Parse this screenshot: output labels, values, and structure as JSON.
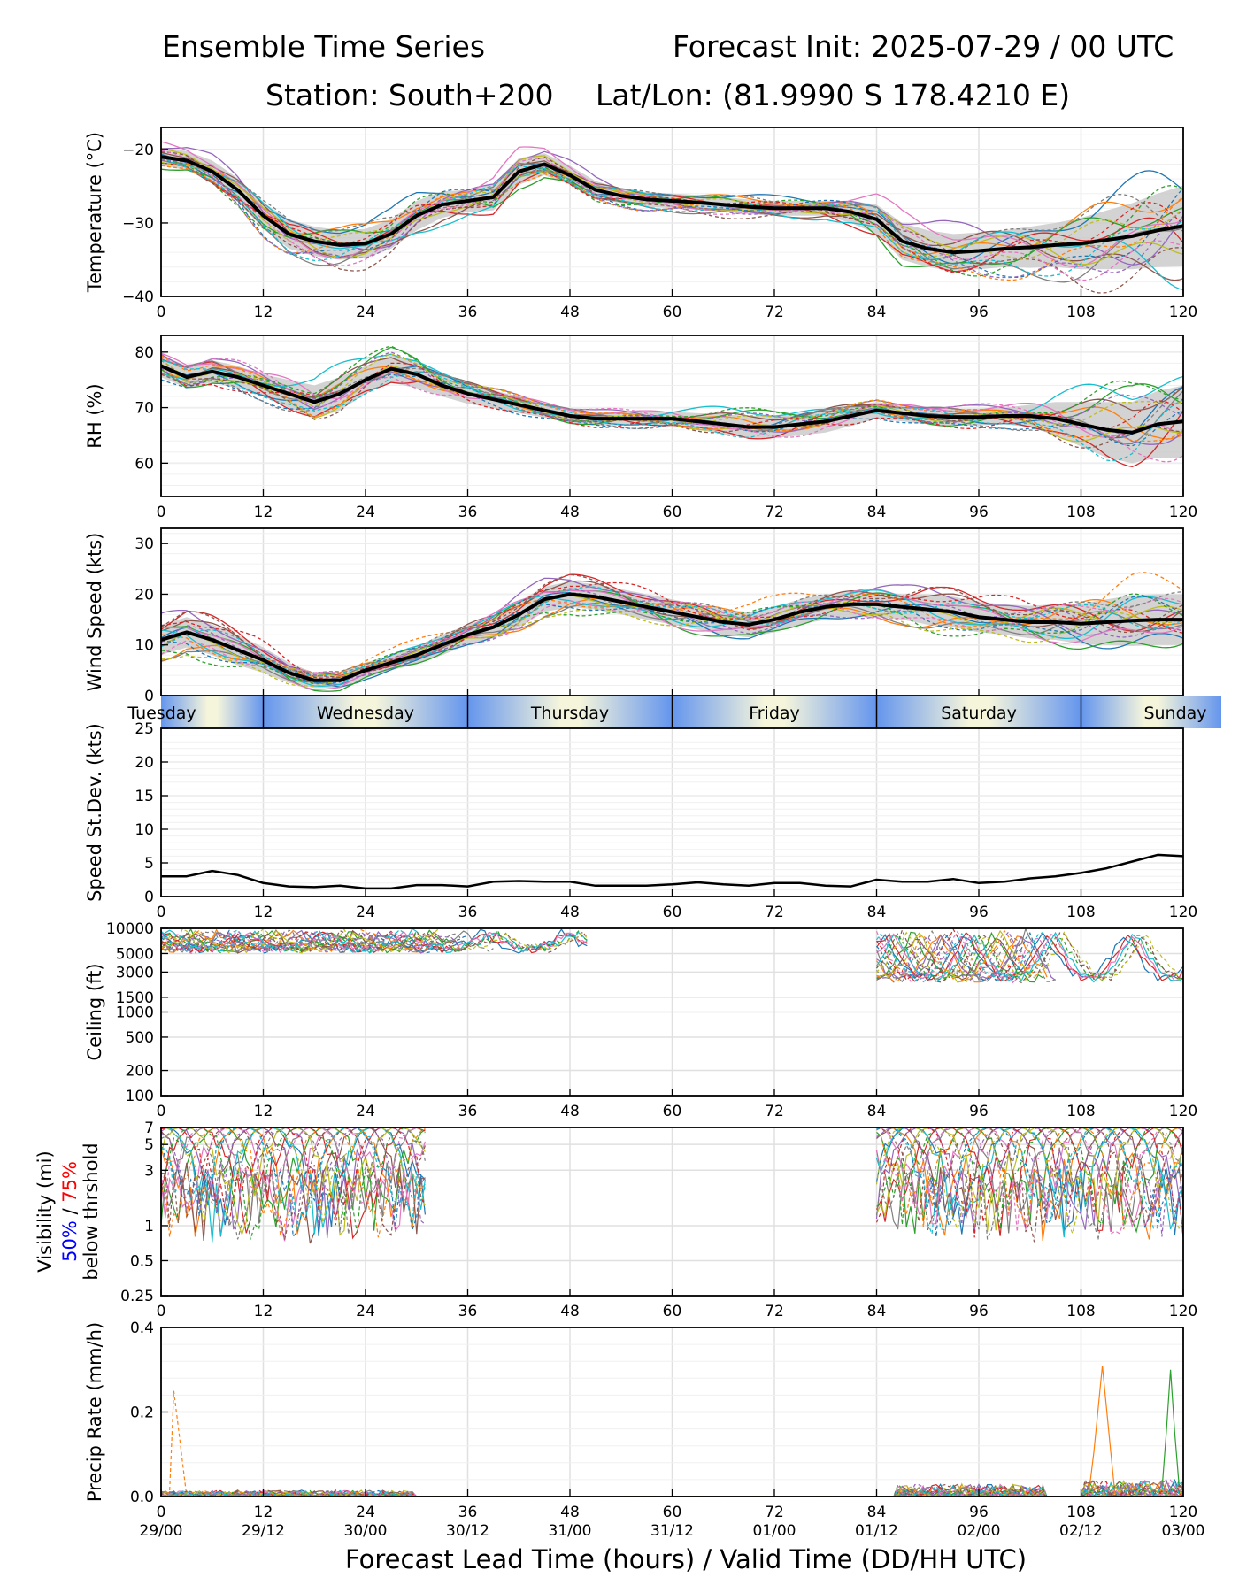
{
  "header": {
    "title_left": "Ensemble Time Series",
    "title_right": "Forecast Init: 2025-07-29 / 00 UTC",
    "station": "Station: South+200",
    "latlon": "Lat/Lon: (81.9990 S 178.4210 E)"
  },
  "xaxis": {
    "label": "Forecast Lead Time (hours) / Valid Time (DD/HH UTC)",
    "ticks": [
      0,
      12,
      24,
      36,
      48,
      60,
      72,
      84,
      96,
      108,
      120
    ],
    "valid_time_labels": [
      "29/00",
      "29/12",
      "30/00",
      "30/12",
      "31/00",
      "31/12",
      "01/00",
      "01/12",
      "02/00",
      "02/12",
      "03/00"
    ]
  },
  "day_bar": {
    "days": [
      {
        "label": "Tuesday",
        "start": 0,
        "end": 12
      },
      {
        "label": "Wednesday",
        "start": 12,
        "end": 36
      },
      {
        "label": "Thursday",
        "start": 36,
        "end": 60
      },
      {
        "label": "Friday",
        "start": 60,
        "end": 84
      },
      {
        "label": "Saturday",
        "start": 84,
        "end": 108
      },
      {
        "label": "Sunday",
        "start": 108,
        "end": 132
      }
    ]
  },
  "colors": {
    "mean": "#000000",
    "spread": "#c8c8c8",
    "members": [
      "#1f77b4",
      "#ff7f0e",
      "#2ca02c",
      "#d62728",
      "#9467bd",
      "#8c564b",
      "#e377c2",
      "#7f7f7f",
      "#bcbd22",
      "#17becf"
    ],
    "vis_50": "#0000ff",
    "vis_75": "#ff0000",
    "day_light": "#f5f5dc",
    "day_dark": "#6495ed"
  },
  "visibility_label": {
    "line1": "Visibility (mi)",
    "p50": "50%",
    "sep": " / ",
    "p75": "75%",
    "line3": "below thrshold"
  },
  "chart_data": [
    {
      "id": "temperature",
      "type": "line",
      "ylabel": "Temperature (°C)",
      "ylim": [
        -40,
        -17
      ],
      "yticks": [
        -40,
        -30,
        -20
      ],
      "ytick_labels": [
        "−40",
        "−30",
        "−20"
      ],
      "grid": true,
      "mean": {
        "x": [
          0,
          3,
          6,
          9,
          12,
          15,
          18,
          21,
          24,
          27,
          30,
          33,
          36,
          39,
          42,
          45,
          48,
          51,
          54,
          57,
          60,
          63,
          66,
          69,
          72,
          75,
          78,
          81,
          84,
          87,
          90,
          93,
          96,
          99,
          102,
          105,
          108,
          111,
          114,
          117,
          120
        ],
        "y": [
          -21,
          -21.5,
          -23,
          -25.5,
          -29,
          -31.5,
          -32.5,
          -33,
          -32.8,
          -31.5,
          -29,
          -27.5,
          -27,
          -26.5,
          -23,
          -22,
          -23.5,
          -25.5,
          -26.3,
          -26.8,
          -27,
          -27.2,
          -27.5,
          -27.8,
          -28,
          -28,
          -28,
          -28.5,
          -29.5,
          -32.5,
          -33.5,
          -34,
          -33.8,
          -33.5,
          -33.3,
          -33,
          -32.8,
          -32.3,
          -31.8,
          -31,
          -30.4
        ]
      },
      "spread_width": [
        1.2,
        1.3,
        1.5,
        1.6,
        1.8,
        2,
        2,
        2,
        2,
        2,
        2,
        1.8,
        1.5,
        1.8,
        1.8,
        1.5,
        1.3,
        1.2,
        1,
        1,
        1,
        1,
        1,
        1,
        1,
        1,
        1,
        1.5,
        2,
        2.5,
        2.5,
        2.5,
        2.5,
        2.5,
        2.8,
        3,
        3.5,
        4,
        4.5,
        5,
        5.5
      ]
    },
    {
      "id": "rh",
      "type": "line",
      "ylabel": "RH (%)",
      "ylim": [
        54,
        83
      ],
      "yticks": [
        60,
        70,
        80
      ],
      "ytick_labels": [
        "60",
        "70",
        "80"
      ],
      "grid": true,
      "mean": {
        "x": [
          0,
          3,
          6,
          9,
          12,
          15,
          18,
          21,
          24,
          27,
          30,
          33,
          36,
          39,
          42,
          45,
          48,
          51,
          54,
          57,
          60,
          63,
          66,
          69,
          72,
          75,
          78,
          81,
          84,
          87,
          90,
          93,
          96,
          99,
          102,
          105,
          108,
          111,
          114,
          117,
          120
        ],
        "y": [
          77.5,
          75.5,
          76.5,
          75.5,
          74,
          72.5,
          71,
          72.5,
          75,
          77,
          76,
          74,
          72.5,
          71.5,
          70.5,
          69.5,
          68.5,
          68,
          68,
          68,
          68,
          67.5,
          67,
          66.5,
          66.5,
          67,
          67.5,
          68.5,
          69.5,
          69,
          68.5,
          68.3,
          68.3,
          68.5,
          68.5,
          68,
          67,
          66,
          65.5,
          67,
          67.5
        ]
      },
      "spread_width": [
        2,
        2,
        2,
        2,
        2,
        2.5,
        3,
        3,
        2.5,
        2.5,
        2.5,
        2,
        1.8,
        1.6,
        1.5,
        1.3,
        1.2,
        1.2,
        1.2,
        1.2,
        1.2,
        1.5,
        1.8,
        2,
        2,
        2,
        2,
        1.8,
        1.5,
        1.5,
        1.5,
        1.5,
        1.5,
        1.5,
        2,
        3,
        4,
        5,
        5.5,
        6,
        6.5
      ]
    },
    {
      "id": "wind_speed",
      "type": "line",
      "ylabel": "Wind Speed (kts)",
      "ylim": [
        0,
        33
      ],
      "yticks": [
        0,
        10,
        20,
        30
      ],
      "ytick_labels": [
        "0",
        "10",
        "20",
        "30"
      ],
      "grid": true,
      "mean": {
        "x": [
          0,
          3,
          6,
          9,
          12,
          15,
          18,
          21,
          24,
          27,
          30,
          33,
          36,
          39,
          42,
          45,
          48,
          51,
          54,
          57,
          60,
          63,
          66,
          69,
          72,
          75,
          78,
          81,
          84,
          87,
          90,
          93,
          96,
          99,
          102,
          105,
          108,
          111,
          114,
          117,
          120
        ],
        "y": [
          11,
          12.5,
          11,
          9,
          7,
          4.5,
          3,
          3,
          5,
          6.5,
          8,
          10,
          12,
          13.5,
          16,
          19,
          20,
          19.5,
          18.5,
          17.5,
          16.5,
          15.5,
          14.5,
          14,
          15,
          16.5,
          17.5,
          18,
          18,
          17.5,
          17,
          16.5,
          15.5,
          15,
          14.5,
          14.5,
          14.2,
          14.5,
          14.8,
          15,
          15
        ]
      },
      "spread_width": [
        3,
        3,
        3,
        3,
        2.5,
        2,
        1.5,
        1.5,
        1.5,
        1.5,
        1.8,
        2,
        2,
        2.2,
        2.5,
        2.5,
        2.5,
        2.5,
        2.5,
        2.5,
        2.5,
        2.5,
        2.5,
        2.5,
        2.5,
        2.5,
        2.5,
        2.5,
        2.5,
        2.5,
        3,
        3,
        3,
        3,
        3.2,
        3.5,
        4,
        4.5,
        5,
        5,
        5
      ]
    },
    {
      "id": "speed_stdev",
      "type": "line",
      "ylabel": "Speed St.Dev. (kts)",
      "ylim": [
        0,
        25
      ],
      "yticks": [
        0,
        5,
        10,
        15,
        20,
        25
      ],
      "ytick_labels": [
        "0",
        "5",
        "10",
        "15",
        "20",
        "25"
      ],
      "grid": true,
      "mean": {
        "x": [
          0,
          3,
          6,
          9,
          12,
          15,
          18,
          21,
          24,
          27,
          30,
          33,
          36,
          39,
          42,
          45,
          48,
          51,
          54,
          57,
          60,
          63,
          66,
          69,
          72,
          75,
          78,
          81,
          84,
          87,
          90,
          93,
          96,
          99,
          102,
          105,
          108,
          111,
          114,
          117,
          120
        ],
        "y": [
          3,
          3,
          3.8,
          3.2,
          2,
          1.5,
          1.4,
          1.6,
          1.2,
          1.2,
          1.7,
          1.7,
          1.5,
          2.2,
          2.3,
          2.2,
          2.2,
          1.6,
          1.6,
          1.6,
          1.8,
          2.1,
          1.8,
          1.6,
          2,
          2,
          1.6,
          1.5,
          2.5,
          2.2,
          2.2,
          2.6,
          2,
          2.2,
          2.7,
          3,
          3.5,
          4.2,
          5.2,
          6.2,
          6
        ]
      }
    },
    {
      "id": "ceiling",
      "type": "line",
      "scale": "log",
      "ylabel": "Ceiling (ft)",
      "ylim": [
        100,
        10000
      ],
      "yticks": [
        100,
        200,
        500,
        1000,
        1500,
        3000,
        5000,
        10000
      ],
      "ytick_labels": [
        "100",
        "200",
        "500",
        "1000",
        "1500",
        "3000",
        "5000",
        "10000"
      ],
      "grid": true
    },
    {
      "id": "visibility",
      "type": "line",
      "scale": "log",
      "ylim": [
        0.25,
        7
      ],
      "yticks": [
        0.25,
        0.5,
        1,
        3,
        5,
        7
      ],
      "ytick_labels": [
        "0.25",
        "0.5",
        "1",
        "3",
        "5",
        "7"
      ],
      "grid": true
    },
    {
      "id": "precip",
      "type": "line",
      "ylabel": "Precip Rate (mm/h)",
      "ylim": [
        0,
        0.4
      ],
      "yticks": [
        0,
        0.2,
        0.4
      ],
      "ytick_labels": [
        "0.0",
        "0.2",
        "0.4"
      ],
      "grid": true
    }
  ]
}
